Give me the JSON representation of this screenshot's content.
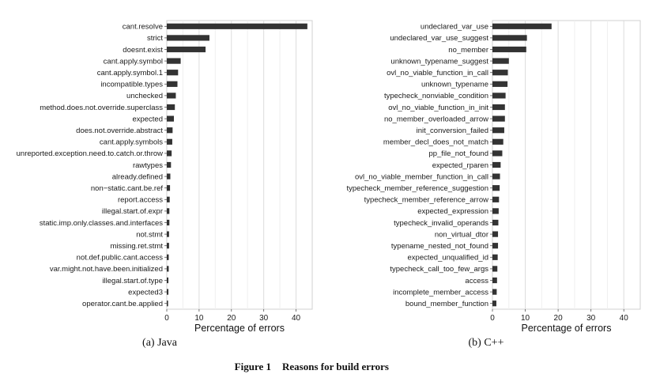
{
  "figure": {
    "number": "Figure 1",
    "title": "Reasons for build errors"
  },
  "chart_data": [
    {
      "type": "bar",
      "orientation": "horizontal",
      "caption": "(a) Java",
      "xlabel": "Percentage of errors",
      "ylabel": "",
      "xlim": [
        0,
        45
      ],
      "xticks": [
        "0",
        "10",
        "20",
        "30",
        "40"
      ],
      "grid": true,
      "bar_color": "#333333",
      "categories": [
        "cant.resolve",
        "strict",
        "doesnt.exist",
        "cant.apply.symbol",
        "cant.apply.symbol.1",
        "incompatible.types",
        "unchecked",
        "method.does.not.override.superclass",
        "expected",
        "does.not.override.abstract",
        "cant.apply.symbols",
        "unreported.exception.need.to.catch.or.throw",
        "rawtypes",
        "already.defined",
        "non−static.cant.be.ref",
        "report.access",
        "illegal.start.of.expr",
        "static.imp.only.classes.and.interfaces",
        "not.stmt",
        "missing.ret.stmt",
        "not.def.public.cant.access",
        "var.might.not.have.been.initialized",
        "illegal.start.of.type",
        "expected3",
        "operator.cant.be.applied"
      ],
      "values": [
        43.5,
        13.2,
        12.0,
        4.3,
        3.5,
        3.3,
        2.8,
        2.5,
        2.2,
        1.8,
        1.7,
        1.5,
        1.3,
        1.1,
        1.0,
        0.9,
        0.8,
        0.8,
        0.7,
        0.7,
        0.6,
        0.6,
        0.5,
        0.5,
        0.4
      ]
    },
    {
      "type": "bar",
      "orientation": "horizontal",
      "caption": "(b) C++",
      "xlabel": "Percentage of errors",
      "ylabel": "",
      "xlim": [
        0,
        45
      ],
      "xticks": [
        "0",
        "10",
        "20",
        "30",
        "40"
      ],
      "grid": true,
      "bar_color": "#333333",
      "categories": [
        "undeclared_var_use",
        "undeclared_var_use_suggest",
        "no_member",
        "unknown_typename_suggest",
        "ovl_no_viable_function_in_call",
        "unknown_typename",
        "typecheck_nonviable_condition",
        "ovl_no_viable_function_in_init",
        "no_member_overloaded_arrow",
        "init_conversion_failed",
        "member_decl_does_not_match",
        "pp_file_not_found",
        "expected_rparen",
        "ovl_no_viable_member_function_in_call",
        "typecheck_member_reference_suggestion",
        "typecheck_member_reference_arrow",
        "expected_expression",
        "typecheck_invalid_operands",
        "non_virtual_dtor",
        "typename_nested_not_found",
        "expected_unqualified_id",
        "typecheck_call_too_few_args",
        "access",
        "incomplete_member_access",
        "bound_member_function"
      ],
      "values": [
        18.0,
        10.5,
        10.3,
        5.0,
        4.7,
        4.6,
        4.0,
        3.8,
        3.8,
        3.6,
        3.3,
        3.0,
        2.5,
        2.3,
        2.2,
        2.0,
        1.9,
        1.8,
        1.7,
        1.7,
        1.6,
        1.5,
        1.4,
        1.3,
        1.2
      ]
    }
  ]
}
